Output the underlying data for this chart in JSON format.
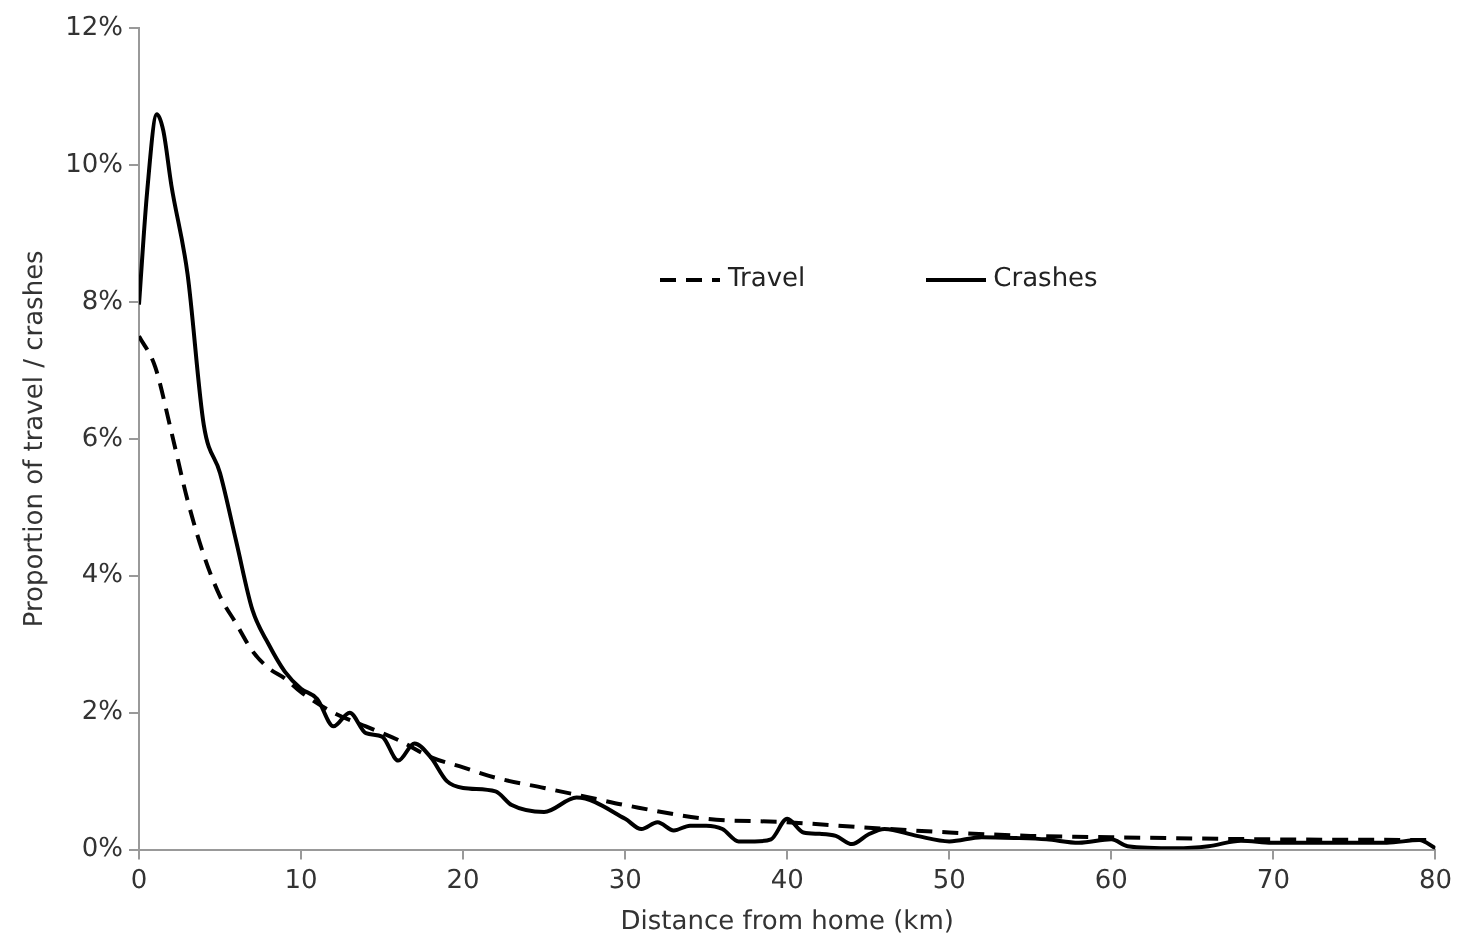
{
  "chart_data": {
    "type": "line",
    "xlabel": "Distance from home (km)",
    "ylabel": "Proportion of travel / crashes",
    "xlim": [
      0,
      80
    ],
    "xticks": [
      0,
      10,
      20,
      30,
      40,
      50,
      60,
      70,
      80
    ],
    "ylim": [
      0,
      12
    ],
    "yticks": [
      {
        "value": 0,
        "label": "0%"
      },
      {
        "value": 2,
        "label": "2%"
      },
      {
        "value": 4,
        "label": "4%"
      },
      {
        "value": 6,
        "label": "6%"
      },
      {
        "value": 8,
        "label": "8%"
      },
      {
        "value": 10,
        "label": "10%"
      },
      {
        "value": 12,
        "label": "12%"
      }
    ],
    "grid": false,
    "legend": "top",
    "marker": "none",
    "series": [
      {
        "name": "Travel",
        "color": "#000000",
        "line_style": "dashed",
        "x": [
          0,
          1,
          2,
          3,
          4,
          5,
          6,
          7,
          8,
          9,
          10,
          12,
          14,
          16,
          18,
          20,
          22,
          25,
          28,
          30,
          35,
          40,
          45,
          50,
          55,
          60,
          70,
          80
        ],
        "values": [
          7.5,
          7.05,
          6.1,
          5.1,
          4.3,
          3.7,
          3.3,
          2.9,
          2.65,
          2.5,
          2.3,
          2.0,
          1.8,
          1.6,
          1.35,
          1.2,
          1.05,
          0.9,
          0.75,
          0.65,
          0.45,
          0.4,
          0.32,
          0.25,
          0.2,
          0.18,
          0.15,
          0.14
        ]
      },
      {
        "name": "Crashes",
        "color": "#000000",
        "line_style": "solid",
        "x": [
          0,
          0.5,
          1.1,
          1.5,
          2,
          3,
          4,
          5,
          6,
          7,
          8,
          9,
          10,
          11,
          12,
          13,
          14,
          15,
          16,
          17,
          18,
          19,
          20,
          22,
          23,
          25,
          27,
          30,
          31,
          32,
          33,
          34,
          35,
          36,
          37,
          38,
          39,
          40,
          41,
          42,
          43,
          44,
          45,
          46,
          48,
          50,
          52,
          54,
          56,
          58,
          60,
          61,
          64,
          66,
          68,
          70,
          74,
          77,
          79,
          80
        ],
        "values": [
          7.96,
          9.6,
          10.74,
          10.5,
          9.7,
          8.4,
          6.2,
          5.5,
          4.5,
          3.5,
          3.0,
          2.6,
          2.35,
          2.2,
          1.8,
          2.0,
          1.7,
          1.65,
          1.3,
          1.55,
          1.35,
          1.0,
          0.9,
          0.85,
          0.65,
          0.55,
          0.76,
          0.45,
          0.3,
          0.4,
          0.28,
          0.35,
          0.35,
          0.3,
          0.12,
          0.12,
          0.15,
          0.45,
          0.25,
          0.23,
          0.2,
          0.08,
          0.22,
          0.3,
          0.2,
          0.12,
          0.18,
          0.17,
          0.15,
          0.1,
          0.15,
          0.05,
          0.02,
          0.05,
          0.13,
          0.1,
          0.1,
          0.1,
          0.14,
          0.02
        ]
      }
    ]
  }
}
